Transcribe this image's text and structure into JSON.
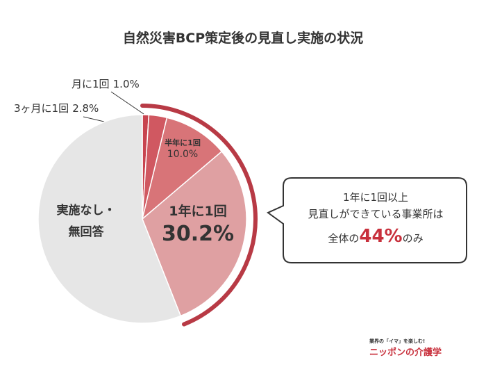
{
  "chart_data": {
    "type": "pie",
    "title": "自然災害BCP策定後の見直し実施の状況",
    "categories": [
      "月に1回",
      "3ヶ月に1回",
      "半年に1回",
      "1年に1回",
      "実施なし・無回答"
    ],
    "values": [
      1.0,
      2.8,
      10.0,
      30.2,
      56.0
    ],
    "value_labels": [
      "1.0%",
      "2.8%",
      "10.0%",
      "30.2%",
      null
    ],
    "colors": [
      "#c8444f",
      "#d05861",
      "#d87478",
      "#dfa0a2",
      "#e6e6e6"
    ],
    "highlight_color": "#b83a45"
  },
  "callout": {
    "line1": "1年に1回以上",
    "line2": "見直しができている事業所は",
    "line3_pre": "全体の",
    "line3_emph": "44%",
    "line3_post": "のみ"
  },
  "logo": {
    "tagline": "業界の「イマ」を楽しむ!",
    "name": "ニッポンの介護学"
  }
}
